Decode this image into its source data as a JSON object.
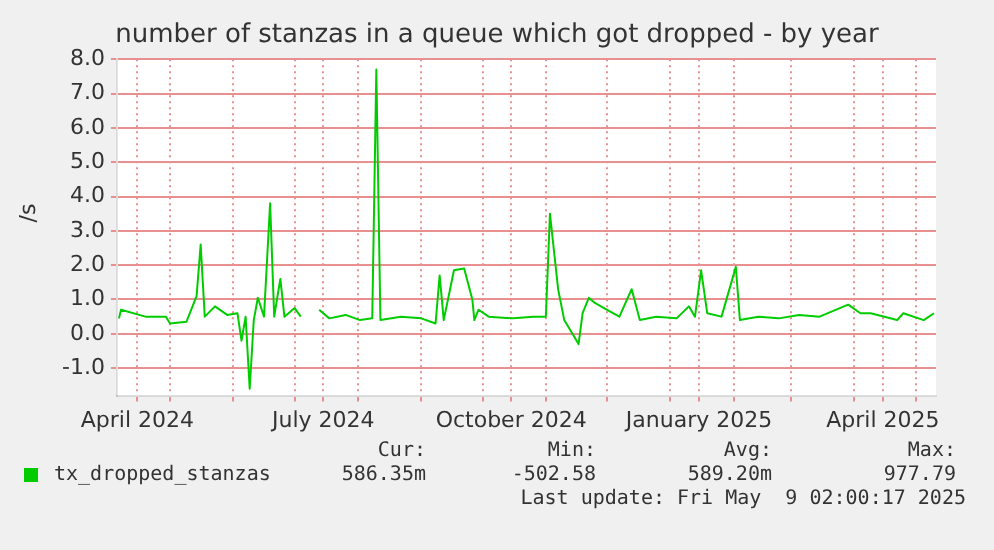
{
  "chart_data": {
    "type": "line",
    "title": "number of stanzas in a queue which got dropped - by year",
    "ylabel": "/s",
    "x": [
      "2024-04-06",
      "2024-04-07",
      "2024-04-19",
      "2024-04-29",
      "2024-05-01",
      "2024-05-09",
      "2024-05-14",
      "2024-05-16",
      "2024-05-18",
      "2024-05-23",
      "2024-05-29",
      "2024-06-03",
      "2024-06-05",
      "2024-06-07",
      "2024-06-09",
      "2024-06-11",
      "2024-06-13",
      "2024-06-16",
      "2024-06-19",
      "2024-06-21",
      "2024-06-24",
      "2024-06-26",
      "2024-07-01",
      "2024-07-04",
      "2024-07-08",
      "2024-07-13",
      "2024-07-18",
      "2024-07-26",
      "2024-08-02",
      "2024-08-08",
      "2024-08-10",
      "2024-08-12",
      "2024-08-22",
      "2024-09-01",
      "2024-09-08",
      "2024-09-10",
      "2024-09-12",
      "2024-09-17",
      "2024-09-22",
      "2024-09-26",
      "2024-09-27",
      "2024-09-29",
      "2024-10-04",
      "2024-10-16",
      "2024-10-26",
      "2024-11-01",
      "2024-11-03",
      "2024-11-07",
      "2024-11-10",
      "2024-11-17",
      "2024-11-19",
      "2024-11-22",
      "2024-11-25",
      "2024-12-01",
      "2024-12-07",
      "2024-12-13",
      "2024-12-17",
      "2024-12-25",
      "2025-01-04",
      "2025-01-10",
      "2025-01-13",
      "2025-01-16",
      "2025-01-19",
      "2025-01-26",
      "2025-02-02",
      "2025-02-04",
      "2025-02-13",
      "2025-02-23",
      "2025-03-05",
      "2025-03-15",
      "2025-03-29",
      "2025-04-04",
      "2025-04-09",
      "2025-04-22",
      "2025-04-25",
      "2025-05-05",
      "2025-05-10"
    ],
    "series": [
      {
        "name": "tx_dropped_stanzas",
        "color": "#00cc00",
        "values": [
          0.45,
          0.7,
          0.5,
          0.5,
          0.3,
          0.35,
          1.1,
          2.6,
          0.5,
          0.8,
          0.55,
          0.6,
          -0.2,
          0.5,
          -1.6,
          0.4,
          1.05,
          0.5,
          3.8,
          0.5,
          1.6,
          0.5,
          0.75,
          0.5,
          null,
          0.7,
          0.45,
          0.55,
          0.4,
          0.45,
          7.7,
          0.4,
          0.5,
          0.45,
          0.3,
          1.7,
          0.4,
          1.85,
          1.9,
          1.0,
          0.4,
          0.7,
          0.5,
          0.45,
          0.5,
          0.5,
          3.5,
          1.3,
          0.4,
          -0.3,
          0.6,
          1.05,
          0.9,
          0.7,
          0.5,
          1.3,
          0.4,
          0.5,
          0.45,
          0.8,
          0.5,
          1.85,
          0.6,
          0.5,
          1.95,
          0.4,
          0.5,
          0.45,
          0.55,
          0.5,
          0.85,
          0.6,
          0.6,
          0.4,
          0.6,
          0.4,
          0.6
        ]
      }
    ],
    "xlim": [
      "2024-04-05",
      "2025-05-11"
    ],
    "xticks": [
      {
        "value": "2024-04-15",
        "label": "April 2024"
      },
      {
        "value": "2024-07-15",
        "label": "July 2024"
      },
      {
        "value": "2024-10-15",
        "label": "October 2024"
      },
      {
        "value": "2025-01-15",
        "label": "January 2025"
      },
      {
        "value": "2025-04-15",
        "label": "April 2025"
      },
      {
        "value": "2024-05-01",
        "label": null
      },
      {
        "value": "2024-06-01",
        "label": null
      },
      {
        "value": "2024-07-01",
        "label": null
      },
      {
        "value": "2024-08-01",
        "label": null
      },
      {
        "value": "2024-09-01",
        "label": null
      },
      {
        "value": "2024-10-01",
        "label": null
      },
      {
        "value": "2024-11-01",
        "label": null
      },
      {
        "value": "2024-12-01",
        "label": null
      },
      {
        "value": "2025-01-01",
        "label": null
      },
      {
        "value": "2025-02-01",
        "label": null
      },
      {
        "value": "2025-03-01",
        "label": null
      },
      {
        "value": "2025-04-01",
        "label": null
      },
      {
        "value": "2025-05-01",
        "label": null
      }
    ],
    "ylim": [
      -1.8,
      8.0
    ],
    "yticks": [
      {
        "value": -1,
        "label": "-1.0"
      },
      {
        "value": 0,
        "label": "0.0"
      },
      {
        "value": 1,
        "label": "1.0"
      },
      {
        "value": 2,
        "label": "2.0"
      },
      {
        "value": 3,
        "label": "3.0"
      },
      {
        "value": 4,
        "label": "4.0"
      },
      {
        "value": 5,
        "label": "5.0"
      },
      {
        "value": 6,
        "label": "6.0"
      },
      {
        "value": 7,
        "label": "7.0"
      },
      {
        "value": 8,
        "label": "8.0"
      }
    ],
    "grid": true,
    "legend": "bottom left",
    "marker": "none",
    "line_style": "solid",
    "annotations": [
      "Cur:",
      "Min:",
      "Avg:",
      "Max:",
      "586.35m",
      "-502.58",
      "589.20m",
      "977.79",
      "Last update: Fri May  9 02:00:17 2025"
    ]
  }
}
